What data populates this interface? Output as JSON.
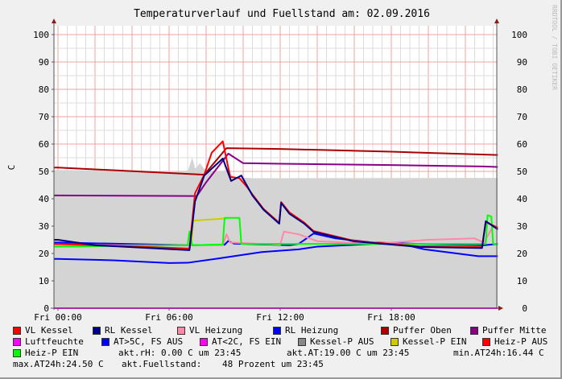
{
  "chart_data": {
    "type": "line",
    "title": "Temperaturverlauf und Fuellstand am: 02.09.2016",
    "ylabel": "C",
    "watermark": "RRDTOOL / TOBI OETIKER",
    "ylim": [
      0,
      100
    ],
    "yticks": [
      "0",
      "10",
      "20",
      "30",
      "40",
      "50",
      "60",
      "70",
      "80",
      "90",
      "100"
    ],
    "xticks": [
      {
        "t": "00:00",
        "label": "Fri 00:00"
      },
      {
        "t": "06:00",
        "label": "Fri 06:00"
      },
      {
        "t": "12:00",
        "label": "Fri 12:00"
      },
      {
        "t": "18:00",
        "label": "Fri 18:00"
      }
    ],
    "xrange": [
      "00:00",
      "23:45"
    ],
    "grid": true,
    "area": {
      "name": "Kessel-P AUS",
      "color": "#d4d4d4",
      "points": [
        [
          "00:00",
          50.5
        ],
        [
          "07:00",
          50
        ],
        [
          "07:15",
          55
        ],
        [
          "07:25",
          51
        ],
        [
          "07:40",
          53
        ],
        [
          "08:00",
          50
        ],
        [
          "09:00",
          50
        ],
        [
          "09:12",
          52
        ],
        [
          "09:20",
          49
        ],
        [
          "09:30",
          48
        ],
        [
          "10:30",
          47.5
        ],
        [
          "23:45",
          47.6
        ]
      ]
    },
    "series": [
      {
        "name": "Luftfeuchte",
        "color": "#ff00ff",
        "points": [
          [
            "00:00",
            0
          ],
          [
            "23:45",
            0
          ]
        ]
      },
      {
        "name": "AT>5C, FS AUS",
        "color": "#0000ff",
        "points": [
          [
            "00:00",
            18
          ],
          [
            "03:00",
            17.5
          ],
          [
            "06:00",
            16.5
          ],
          [
            "07:00",
            16.6
          ],
          [
            "08:30",
            18
          ],
          [
            "11:00",
            20.5
          ],
          [
            "13:00",
            21.5
          ],
          [
            "14:00",
            22.5
          ],
          [
            "17:00",
            23.5
          ],
          [
            "18:30",
            23.5
          ],
          [
            "19:48",
            21.5
          ],
          [
            "22:42",
            19
          ],
          [
            "23:45",
            19
          ]
        ]
      },
      {
        "name": "RL Heizung",
        "color": "#0000ff",
        "points": [
          [
            "00:00",
            24
          ],
          [
            "07:00",
            23
          ],
          [
            "09:00",
            23.2
          ],
          [
            "09:12",
            24.6
          ],
          [
            "09:30",
            23.6
          ],
          [
            "12:30",
            23
          ],
          [
            "13:00",
            23.5
          ],
          [
            "13:48",
            27.3
          ],
          [
            "15:00",
            25.5
          ],
          [
            "17:00",
            24
          ],
          [
            "19:30",
            23.5
          ],
          [
            "23:00",
            23
          ],
          [
            "23:45",
            23.5
          ]
        ]
      },
      {
        "name": "VL Heizung",
        "color": "#ff88aa",
        "points": [
          [
            "00:00",
            23
          ],
          [
            "08:54",
            23
          ],
          [
            "09:06",
            27
          ],
          [
            "09:18",
            24
          ],
          [
            "12:00",
            23.2
          ],
          [
            "12:12",
            28
          ],
          [
            "13:00",
            27
          ],
          [
            "14:00",
            24.5
          ],
          [
            "17:00",
            23.5
          ],
          [
            "20:00",
            25
          ],
          [
            "22:30",
            25.5
          ],
          [
            "23:00",
            24
          ],
          [
            "23:30",
            30
          ],
          [
            "23:45",
            29.6
          ]
        ]
      },
      {
        "name": "Kessel-P EIN",
        "color": "#cccc00",
        "points": [
          [
            "07:12",
            23
          ],
          [
            "07:18",
            32
          ],
          [
            "09:00",
            32.8
          ]
        ]
      },
      {
        "name": "Heiz-P EIN",
        "color": "#00ff00",
        "points": [
          [
            "00:00",
            22.5
          ],
          [
            "07:00",
            23
          ],
          [
            "07:06",
            28
          ],
          [
            "07:15",
            23
          ],
          [
            "08:54",
            23.3
          ],
          [
            "09:00",
            33
          ],
          [
            "09:48",
            33
          ],
          [
            "09:54",
            23.5
          ],
          [
            "23:06",
            23.5
          ],
          [
            "23:12",
            34
          ],
          [
            "23:24",
            33.5
          ],
          [
            "23:30",
            23.5
          ],
          [
            "23:45",
            23.5
          ]
        ]
      },
      {
        "name": "Puffer Mitte",
        "color": "#880088",
        "points": [
          [
            "00:00",
            41.2
          ],
          [
            "07:30",
            41
          ],
          [
            "08:00",
            46
          ],
          [
            "09:12",
            56.5
          ],
          [
            "10:00",
            53
          ],
          [
            "12:00",
            52.8
          ],
          [
            "18:00",
            52.3
          ],
          [
            "23:00",
            51.8
          ],
          [
            "23:45",
            51.6
          ]
        ]
      },
      {
        "name": "Puffer Oben",
        "color": "#aa0000",
        "points": [
          [
            "00:00",
            51.4
          ],
          [
            "07:54",
            48.8
          ],
          [
            "09:06",
            58.5
          ],
          [
            "12:00",
            58.2
          ],
          [
            "18:00",
            57.2
          ],
          [
            "23:45",
            56
          ]
        ]
      },
      {
        "name": "VL Kessel",
        "color": "#ff0000",
        "points": [
          [
            "00:00",
            23.5
          ],
          [
            "07:06",
            21.8
          ],
          [
            "07:24",
            42
          ],
          [
            "07:54",
            48.8
          ],
          [
            "08:18",
            56.8
          ],
          [
            "08:54",
            61
          ],
          [
            "09:18",
            48
          ],
          [
            "09:48",
            47.5
          ],
          [
            "10:12",
            44.4
          ],
          [
            "10:30",
            41.6
          ],
          [
            "11:06",
            36.3
          ],
          [
            "11:57",
            31.2
          ],
          [
            "12:03",
            38.8
          ],
          [
            "12:30",
            35
          ],
          [
            "13:18",
            31.3
          ],
          [
            "13:48",
            28.2
          ],
          [
            "16:00",
            24.6
          ],
          [
            "19:30",
            22.6
          ],
          [
            "22:54",
            22.3
          ],
          [
            "23:06",
            31.5
          ],
          [
            "23:45",
            29.4
          ]
        ]
      },
      {
        "name": "RL Kessel",
        "color": "#000080",
        "points": [
          [
            "00:00",
            25
          ],
          [
            "02:00",
            23
          ],
          [
            "07:06",
            21.2
          ],
          [
            "07:24",
            39
          ],
          [
            "07:54",
            48.5
          ],
          [
            "08:54",
            54.7
          ],
          [
            "09:21",
            46.5
          ],
          [
            "09:54",
            48.5
          ],
          [
            "10:30",
            41.2
          ],
          [
            "11:06",
            36
          ],
          [
            "11:57",
            30.9
          ],
          [
            "12:03",
            38.5
          ],
          [
            "12:30",
            34.5
          ],
          [
            "13:18",
            30.9
          ],
          [
            "13:48",
            27.9
          ],
          [
            "16:00",
            24.4
          ],
          [
            "19:30",
            22.4
          ],
          [
            "22:54",
            22
          ],
          [
            "23:06",
            31.8
          ],
          [
            "23:45",
            28.8
          ]
        ]
      }
    ]
  },
  "legend": {
    "items": [
      {
        "label": "VL Kessel",
        "color": "#ff0000"
      },
      {
        "label": "RL Kessel",
        "color": "#000080"
      },
      {
        "label": "VL Heizung",
        "color": "#ff88aa"
      },
      {
        "label": "RL Heizung",
        "color": "#0000ff"
      },
      {
        "label": "Puffer Oben",
        "color": "#aa0000"
      },
      {
        "label": "Puffer Mitte",
        "color": "#880088"
      },
      {
        "label": "Luftfeuchte",
        "color": "#ff00ff"
      },
      {
        "label": "AT>5C, FS AUS",
        "color": "#0000ff"
      },
      {
        "label": "AT<2C, FS EIN",
        "color": "#ff00ff"
      },
      {
        "label": "Kessel-P AUS",
        "color": "#888888"
      },
      {
        "label": "Kessel-P EIN",
        "color": "#cccc00"
      },
      {
        "label": "Heiz-P AUS",
        "color": "#ff0000"
      },
      {
        "label": "Heiz-P EIN",
        "color": "#00ff00"
      }
    ],
    "akt_rh": "akt.rH: 0.00 C um 23:45",
    "akt_at": "akt.AT:19.00 C um 23:45",
    "min_at": "min.AT24h:16.44 C",
    "max_at": "max.AT24h:24.50 C",
    "akt_fuell_label": "akt.Fuellstand:",
    "akt_fuell_value": "48 Prozent um 23:45"
  }
}
